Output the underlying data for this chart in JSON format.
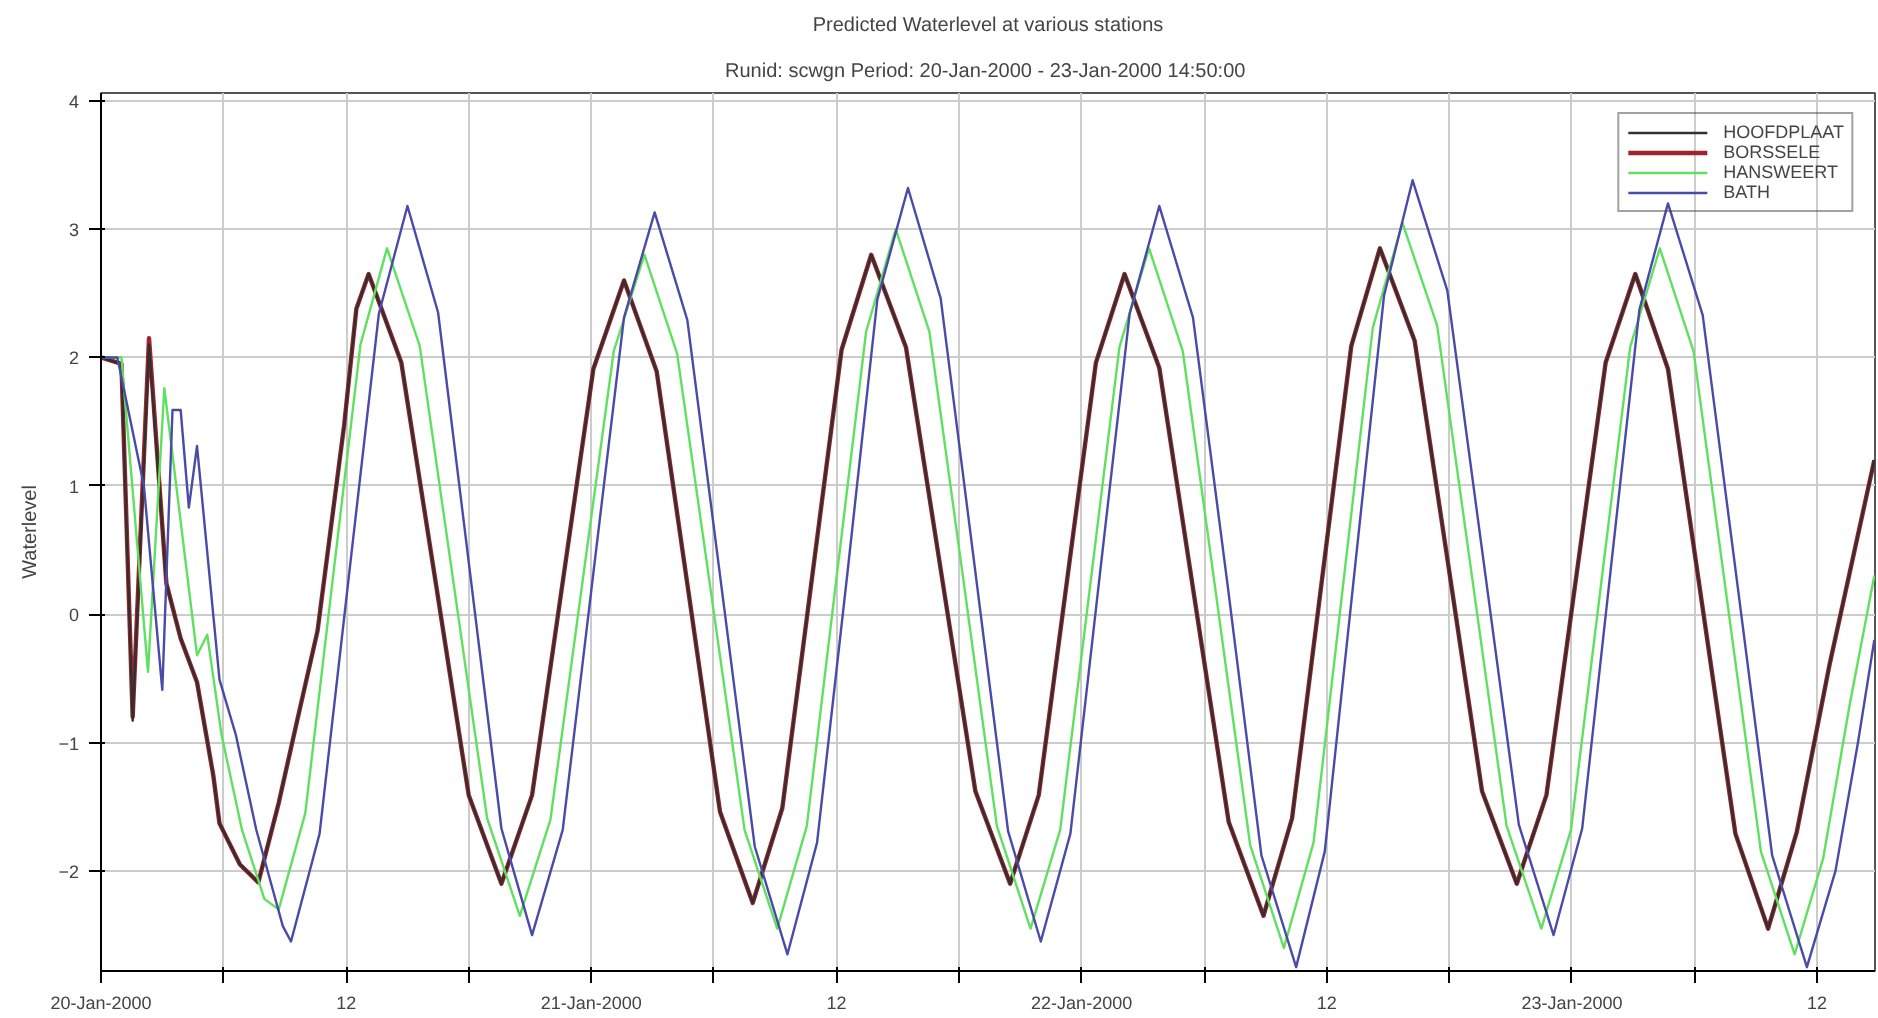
{
  "chart_data": {
    "type": "line",
    "title": "Predicted Waterlevel at various stations",
    "subtitle": "Runid: scwgn  Period: 20-Jan-2000 - 23-Jan-2000 14:50:00",
    "ylabel": "Waterlevel",
    "xlim": [
      "2000-01-20T00:00",
      "2000-01-23T14:50"
    ],
    "ylim": [
      -2.78,
      4.06
    ],
    "yticks": [
      -2,
      -1,
      0,
      1,
      2,
      3,
      4
    ],
    "xticks": [
      {
        "value": "2000-01-20",
        "label": "20-Jan-2000"
      },
      {
        "value": "2000-01-20T06:00",
        "label": null
      },
      {
        "value": "2000-01-20T12:00",
        "label": "12"
      },
      {
        "value": "2000-01-20T18:00",
        "label": null
      },
      {
        "value": "2000-01-21",
        "label": "21-Jan-2000"
      },
      {
        "value": "2000-01-21T06:00",
        "label": null
      },
      {
        "value": "2000-01-21T12:00",
        "label": "12"
      },
      {
        "value": "2000-01-21T18:00",
        "label": null
      },
      {
        "value": "2000-01-22",
        "label": "22-Jan-2000"
      },
      {
        "value": "2000-01-22T06:00",
        "label": null
      },
      {
        "value": "2000-01-22T12:00",
        "label": "12"
      },
      {
        "value": "2000-01-22T18:00",
        "label": null
      },
      {
        "value": "2000-01-23",
        "label": "23-Jan-2000"
      },
      {
        "value": "2000-01-23T06:00",
        "label": null
      },
      {
        "value": "2000-01-23T12:00",
        "label": "12"
      }
    ],
    "grid": true,
    "legend": "top right",
    "line_style": "solid",
    "marker": "none",
    "series": [
      {
        "name": "BORSSELE",
        "color": "#a0222a",
        "x": [
          "2000-01-20T00:00",
          "2000-01-20T01:00",
          "2000-01-20T01:33",
          "2000-01-20T02:21",
          "2000-01-20T03:12",
          "2000-01-20T03:54",
          "2000-01-20T04:42",
          "2000-01-20T05:30",
          "2000-01-20T05:48",
          "2000-01-20T06:48",
          "2000-01-20T07:42",
          "2000-01-20T08:42",
          "2000-01-20T09:36",
          "2000-01-20T10:36",
          "2000-01-20T11:54",
          "2000-01-20T12:30",
          "2000-01-20T13:06",
          "2000-01-20T14:42",
          "2000-01-20T16:21",
          "2000-01-20T18:00",
          "2000-01-20T19:36",
          "2000-01-20T21:06",
          "2000-01-20T22:36",
          "2000-01-21T00:06",
          "2000-01-21T01:36",
          "2000-01-21T03:12",
          "2000-01-21T04:45",
          "2000-01-21T06:18",
          "2000-01-21T07:54",
          "2000-01-21T09:21",
          "2000-01-21T10:48",
          "2000-01-21T12:15",
          "2000-01-21T13:42",
          "2000-01-21T15:24",
          "2000-01-21T17:06",
          "2000-01-21T18:48",
          "2000-01-21T20:30",
          "2000-01-21T21:54",
          "2000-01-21T23:18",
          "2000-01-22T00:42",
          "2000-01-22T02:06",
          "2000-01-22T03:48",
          "2000-01-22T05:30",
          "2000-01-22T07:12",
          "2000-01-22T08:54",
          "2000-01-22T10:18",
          "2000-01-22T11:45",
          "2000-01-22T13:12",
          "2000-01-22T14:36",
          "2000-01-22T16:18",
          "2000-01-22T17:57",
          "2000-01-22T19:36",
          "2000-01-22T21:18",
          "2000-01-22T22:45",
          "2000-01-23T00:12",
          "2000-01-23T01:39",
          "2000-01-23T03:06",
          "2000-01-23T04:42",
          "2000-01-23T06:21",
          "2000-01-23T08:00",
          "2000-01-23T09:36",
          "2000-01-23T11:00",
          "2000-01-23T12:36",
          "2000-01-23T14:48"
        ],
        "values": [
          2,
          1.95,
          -0.8,
          2.15,
          0.24,
          -0.19,
          -0.53,
          -1.26,
          -1.63,
          -1.95,
          -2.09,
          -1.47,
          -0.83,
          -0.13,
          1.47,
          2.38,
          2.65,
          1.96,
          0.28,
          -1.41,
          -2.1,
          -1.41,
          0.25,
          1.91,
          2.6,
          1.89,
          0.18,
          -1.54,
          -2.25,
          -1.51,
          0.28,
          2.06,
          2.8,
          2.08,
          0.35,
          -1.38,
          -2.1,
          -1.41,
          0.28,
          1.96,
          2.65,
          1.92,
          0.15,
          -1.62,
          -2.35,
          -1.59,
          0.25,
          2.09,
          2.85,
          2.13,
          0.38,
          -1.38,
          -2.1,
          -1.41,
          0.28,
          1.96,
          2.65,
          1.91,
          0.1,
          -1.71,
          -2.45,
          -1.7,
          -0.4,
          1.2
        ]
      },
      {
        "name": "HOOFDPLAAT",
        "color": "#303030",
        "x": [
          "2000-01-20T00:00",
          "2000-01-20T01:00",
          "2000-01-20T01:33",
          "2000-01-20T02:21",
          "2000-01-20T03:12",
          "2000-01-20T03:54",
          "2000-01-20T04:42",
          "2000-01-20T05:30",
          "2000-01-20T05:48",
          "2000-01-20T06:48",
          "2000-01-20T07:42",
          "2000-01-20T08:42",
          "2000-01-20T09:36",
          "2000-01-20T10:36",
          "2000-01-20T11:54",
          "2000-01-20T12:30",
          "2000-01-20T13:06",
          "2000-01-20T14:42",
          "2000-01-20T16:21",
          "2000-01-20T18:00",
          "2000-01-20T19:36",
          "2000-01-20T21:06",
          "2000-01-20T22:36",
          "2000-01-21T00:06",
          "2000-01-21T01:36",
          "2000-01-21T03:12",
          "2000-01-21T04:45",
          "2000-01-21T06:18",
          "2000-01-21T07:54",
          "2000-01-21T09:21",
          "2000-01-21T10:48",
          "2000-01-21T12:15",
          "2000-01-21T13:42",
          "2000-01-21T15:24",
          "2000-01-21T17:06",
          "2000-01-21T18:48",
          "2000-01-21T20:30",
          "2000-01-21T21:54",
          "2000-01-21T23:18",
          "2000-01-22T00:42",
          "2000-01-22T02:06",
          "2000-01-22T03:48",
          "2000-01-22T05:30",
          "2000-01-22T07:12",
          "2000-01-22T08:54",
          "2000-01-22T10:18",
          "2000-01-22T11:45",
          "2000-01-22T13:12",
          "2000-01-22T14:36",
          "2000-01-22T16:18",
          "2000-01-22T17:57",
          "2000-01-22T19:36",
          "2000-01-22T21:18",
          "2000-01-22T22:45",
          "2000-01-23T00:12",
          "2000-01-23T01:39",
          "2000-01-23T03:06",
          "2000-01-23T04:42",
          "2000-01-23T06:21",
          "2000-01-23T08:00",
          "2000-01-23T09:36",
          "2000-01-23T11:00",
          "2000-01-23T12:36",
          "2000-01-23T14:48"
        ],
        "values": [
          2,
          1.95,
          -0.83,
          2.1,
          0.24,
          -0.19,
          -0.53,
          -1.26,
          -1.63,
          -1.95,
          -2.09,
          -1.47,
          -0.83,
          -0.13,
          1.47,
          2.38,
          2.65,
          1.96,
          0.28,
          -1.41,
          -2.1,
          -1.41,
          0.25,
          1.91,
          2.6,
          1.89,
          0.18,
          -1.54,
          -2.25,
          -1.51,
          0.28,
          2.06,
          2.8,
          2.08,
          0.35,
          -1.38,
          -2.1,
          -1.41,
          0.28,
          1.96,
          2.65,
          1.92,
          0.15,
          -1.62,
          -2.35,
          -1.59,
          0.25,
          2.09,
          2.85,
          2.13,
          0.38,
          -1.38,
          -2.1,
          -1.41,
          0.28,
          1.96,
          2.65,
          1.91,
          0.1,
          -1.71,
          -2.45,
          -1.7,
          -0.4,
          1.2
        ]
      },
      {
        "name": "HANSWEERT",
        "color": "#60e060",
        "x": [
          "2000-01-20T00:00",
          "2000-01-20T01:00",
          "2000-01-20T02:18",
          "2000-01-20T03:06",
          "2000-01-20T04:42",
          "2000-01-20T05:12",
          "2000-01-20T05:54",
          "2000-01-20T06:54",
          "2000-01-20T08:00",
          "2000-01-20T08:42",
          "2000-01-20T10:00",
          "2000-01-20T11:21",
          "2000-01-20T12:42",
          "2000-01-20T14:00",
          "2000-01-20T15:36",
          "2000-01-20T17:15",
          "2000-01-20T18:54",
          "2000-01-20T20:30",
          "2000-01-20T22:00",
          "2000-01-20T23:33",
          "2000-01-21T01:06",
          "2000-01-21T02:36",
          "2000-01-21T04:12",
          "2000-01-21T05:51",
          "2000-01-21T07:30",
          "2000-01-21T09:06",
          "2000-01-21T10:33",
          "2000-01-21T12:00",
          "2000-01-21T13:27",
          "2000-01-21T14:54",
          "2000-01-21T16:33",
          "2000-01-21T18:12",
          "2000-01-21T19:51",
          "2000-01-21T21:30",
          "2000-01-21T22:57",
          "2000-01-22T00:24",
          "2000-01-22T01:51",
          "2000-01-22T03:18",
          "2000-01-22T04:57",
          "2000-01-22T06:36",
          "2000-01-22T08:15",
          "2000-01-22T09:54",
          "2000-01-22T11:21",
          "2000-01-22T12:48",
          "2000-01-22T14:15",
          "2000-01-22T15:42",
          "2000-01-22T17:24",
          "2000-01-22T19:06",
          "2000-01-22T20:48",
          "2000-01-22T22:30",
          "2000-01-22T23:57",
          "2000-01-23T01:24",
          "2000-01-23T02:51",
          "2000-01-23T04:18",
          "2000-01-23T05:57",
          "2000-01-23T07:36",
          "2000-01-23T09:15",
          "2000-01-23T10:54",
          "2000-01-23T12:18",
          "2000-01-23T13:36",
          "2000-01-23T14:48"
        ],
        "values": [
          2,
          2,
          -0.45,
          1.76,
          -0.32,
          -0.16,
          -0.94,
          -1.68,
          -2.22,
          -2.3,
          -1.55,
          0.28,
          2.1,
          2.85,
          2.09,
          0.25,
          -1.59,
          -2.35,
          -1.6,
          0.23,
          2.05,
          2.8,
          2.03,
          0.18,
          -1.68,
          -2.45,
          -1.65,
          0.28,
          2.2,
          3.0,
          2.2,
          0.28,
          -1.65,
          -2.45,
          -1.68,
          0.2,
          2.08,
          2.85,
          2.05,
          0.13,
          -1.8,
          -2.6,
          -1.78,
          0.23,
          2.23,
          3.05,
          2.25,
          0.3,
          -1.65,
          -2.45,
          -1.68,
          0.2,
          2.08,
          2.85,
          2.05,
          0.1,
          -1.85,
          -2.65,
          -1.9,
          -0.7,
          0.3
        ]
      },
      {
        "name": "BATH",
        "color": "#4a4aa8",
        "x": [
          "2000-01-20T00:00",
          "2000-01-20T00:48",
          "2000-01-20T02:06",
          "2000-01-20T03:00",
          "2000-01-20T03:30",
          "2000-01-20T03:54",
          "2000-01-20T04:18",
          "2000-01-20T04:42",
          "2000-01-20T05:48",
          "2000-01-20T06:36",
          "2000-01-20T07:36",
          "2000-01-20T08:54",
          "2000-01-20T09:18",
          "2000-01-20T10:42",
          "2000-01-20T12:09",
          "2000-01-20T13:36",
          "2000-01-20T15:00",
          "2000-01-20T16:30",
          "2000-01-20T18:03",
          "2000-01-20T19:36",
          "2000-01-20T21:06",
          "2000-01-20T22:36",
          "2000-01-21T00:06",
          "2000-01-21T01:36",
          "2000-01-21T03:06",
          "2000-01-21T04:42",
          "2000-01-21T06:21",
          "2000-01-21T08:00",
          "2000-01-21T09:36",
          "2000-01-21T11:03",
          "2000-01-21T12:33",
          "2000-01-21T14:00",
          "2000-01-21T15:30",
          "2000-01-21T17:06",
          "2000-01-21T18:45",
          "2000-01-21T20:24",
          "2000-01-21T22:00",
          "2000-01-21T23:27",
          "2000-01-22T00:54",
          "2000-01-22T02:21",
          "2000-01-22T03:48",
          "2000-01-22T05:27",
          "2000-01-22T07:09",
          "2000-01-22T08:48",
          "2000-01-22T10:30",
          "2000-01-22T11:54",
          "2000-01-22T13:21",
          "2000-01-22T14:48",
          "2000-01-22T16:12",
          "2000-01-22T17:54",
          "2000-01-22T19:39",
          "2000-01-22T21:24",
          "2000-01-22T23:06",
          "2000-01-23T00:30",
          "2000-01-23T01:54",
          "2000-01-23T03:18",
          "2000-01-23T04:42",
          "2000-01-23T06:24",
          "2000-01-23T08:06",
          "2000-01-23T09:48",
          "2000-01-23T11:30",
          "2000-01-23T12:54",
          "2000-01-23T14:00",
          "2000-01-23T14:48"
        ],
        "values": [
          2,
          2,
          1.0,
          -0.59,
          1.59,
          1.59,
          0.83,
          1.31,
          -0.51,
          -0.94,
          -1.68,
          -2.43,
          -2.55,
          -1.71,
          0.32,
          2.34,
          3.18,
          2.35,
          0.34,
          -1.67,
          -2.5,
          -1.68,
          0.32,
          2.31,
          3.13,
          2.29,
          0.24,
          -1.81,
          -2.65,
          -1.78,
          0.34,
          2.45,
          3.32,
          2.46,
          0.39,
          -1.69,
          -2.55,
          -1.71,
          0.32,
          2.34,
          3.18,
          2.31,
          0.22,
          -1.88,
          -2.75,
          -1.85,
          0.32,
          2.48,
          3.38,
          2.52,
          0.44,
          -1.64,
          -2.5,
          -1.67,
          0.35,
          2.37,
          3.2,
          2.33,
          0.23,
          -1.88,
          -2.75,
          -2.0,
          -1.0,
          -0.2
        ]
      }
    ]
  }
}
